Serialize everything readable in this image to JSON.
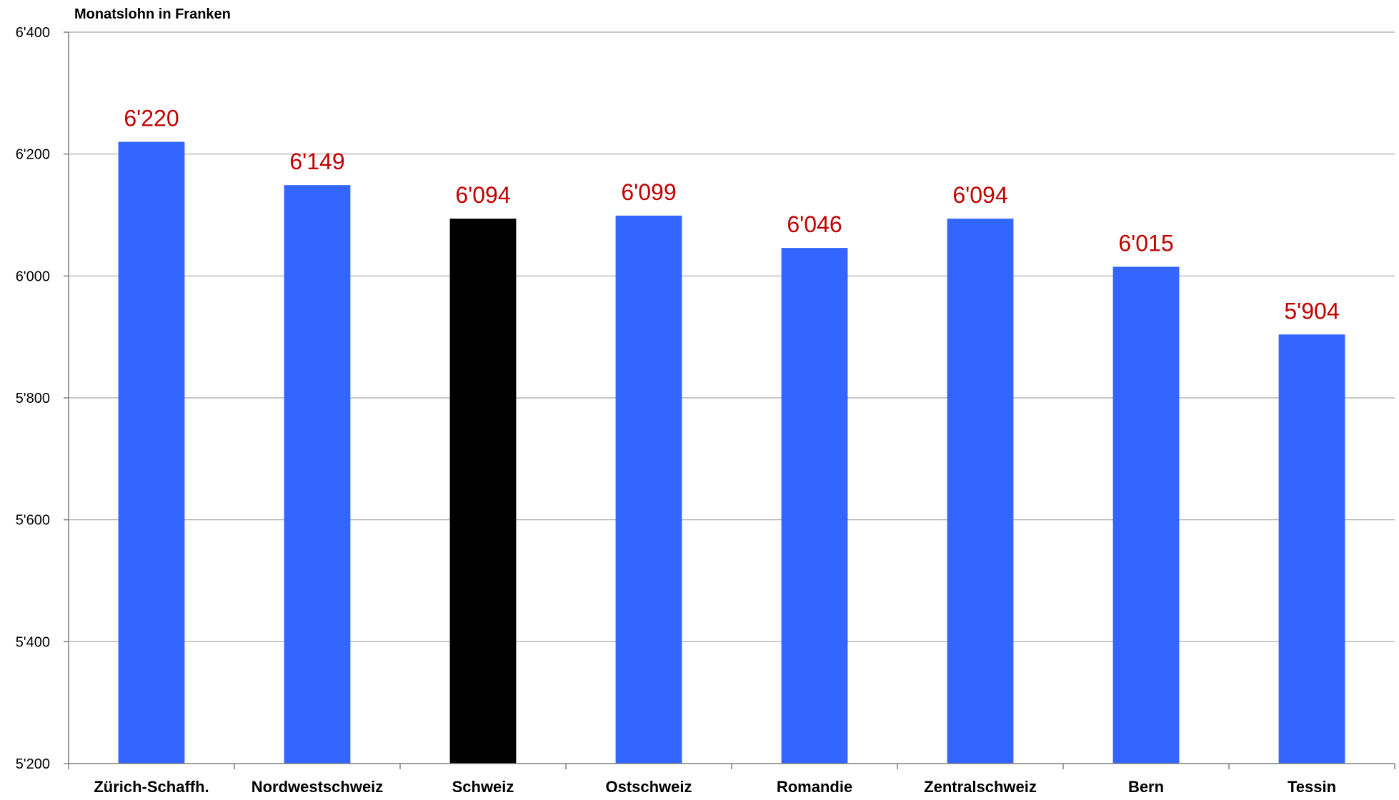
{
  "chart_data": {
    "type": "bar",
    "title": "",
    "xlabel": "",
    "ylabel": "Monatslohn in Franken",
    "ylim": [
      5200,
      6400
    ],
    "yticks": [
      5200,
      5400,
      5600,
      5800,
      6000,
      6200,
      6400
    ],
    "ytick_labels": [
      "5'200",
      "5'400",
      "5'600",
      "5'800",
      "6'000",
      "6'200",
      "6'400"
    ],
    "grid": true,
    "legend": "none",
    "categories": [
      "Zürich-Schaffh.",
      "Nordwestschweiz",
      "Schweiz",
      "Ostschweiz",
      "Romandie",
      "Zentralschweiz",
      "Bern",
      "Tessin"
    ],
    "values": [
      6220,
      6149,
      6094,
      6099,
      6046,
      6094,
      6015,
      5904
    ],
    "data_labels": [
      "6'220",
      "6'149",
      "6'094",
      "6'099",
      "6'046",
      "6'094",
      "6'015",
      "5'904"
    ],
    "bar_colors": [
      "#3366ff",
      "#3366ff",
      "#000000",
      "#3366ff",
      "#3366ff",
      "#3366ff",
      "#3366ff",
      "#3366ff"
    ],
    "label_color": "#c00000"
  }
}
